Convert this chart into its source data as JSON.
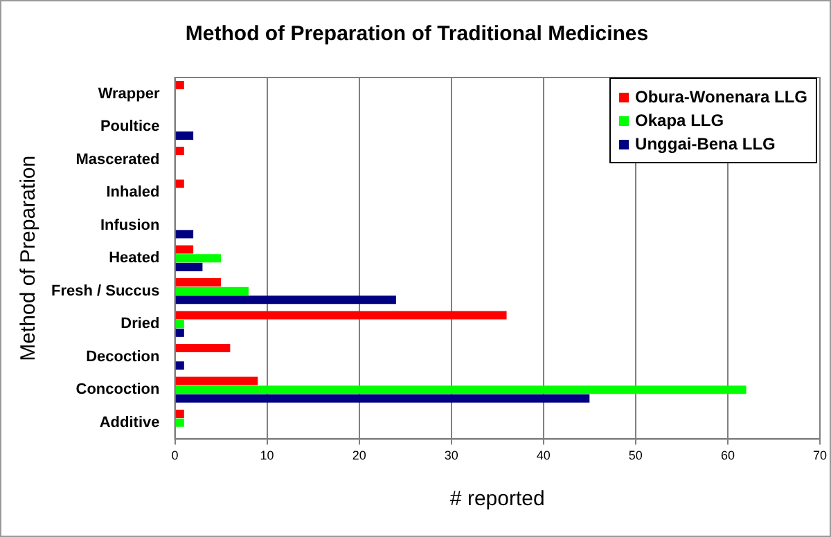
{
  "chart_data": {
    "type": "bar",
    "orientation": "horizontal",
    "title": "Method of Preparation of Traditional Medicines",
    "xlabel": "# reported",
    "ylabel": "Method of Preparation",
    "categories": [
      "Wrapper",
      "Poultice",
      "Mascerated",
      "Inhaled",
      "Infusion",
      "Heated",
      "Fresh / Succus",
      "Dried",
      "Decoction",
      "Concoction",
      "Additive"
    ],
    "series": [
      {
        "name": "Obura-Wonenara LLG",
        "color": "#ff0000",
        "values": [
          1,
          0,
          1,
          1,
          0,
          2,
          5,
          36,
          6,
          9,
          1
        ]
      },
      {
        "name": "Okapa LLG",
        "color": "#00ff00",
        "values": [
          0,
          0,
          0,
          0,
          0,
          5,
          8,
          1,
          0,
          62,
          1
        ]
      },
      {
        "name": "Unggai-Bena LLG",
        "color": "#000080",
        "values": [
          0,
          2,
          0,
          0,
          2,
          3,
          24,
          1,
          1,
          45,
          0
        ]
      }
    ],
    "xlim": [
      0,
      70
    ],
    "xticks": [
      0,
      10,
      20,
      30,
      40,
      50,
      60,
      70
    ],
    "grid": "x",
    "legend": "top right"
  }
}
